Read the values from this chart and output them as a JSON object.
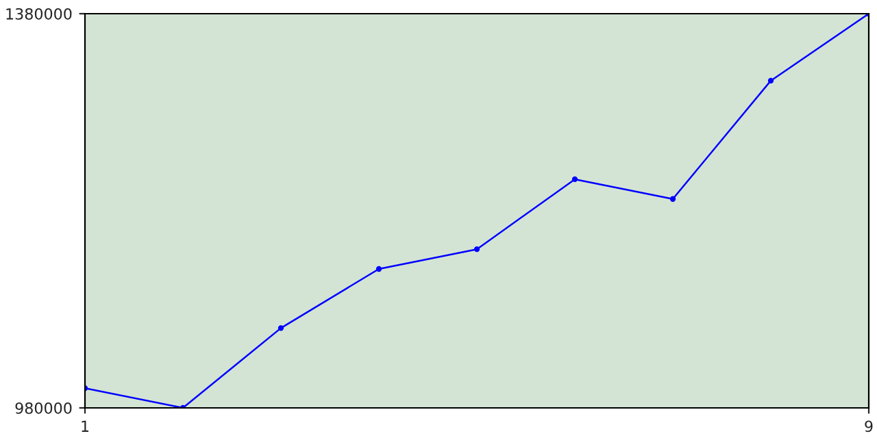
{
  "chart_data": {
    "type": "line",
    "x": [
      1,
      2,
      3,
      4,
      5,
      6,
      7,
      8,
      9
    ],
    "series": [
      {
        "color": "#0000ff",
        "values": [
          1000000,
          980000,
          1061000,
          1121000,
          1141000,
          1212000,
          1192000,
          1312000,
          1380000
        ]
      }
    ],
    "xlim": [
      1,
      9
    ],
    "xticks": [
      1,
      9
    ],
    "ylim": [
      980000,
      1380000
    ],
    "yticks": [
      980000,
      1380000
    ],
    "marker": "circle",
    "line_style": "solid"
  }
}
